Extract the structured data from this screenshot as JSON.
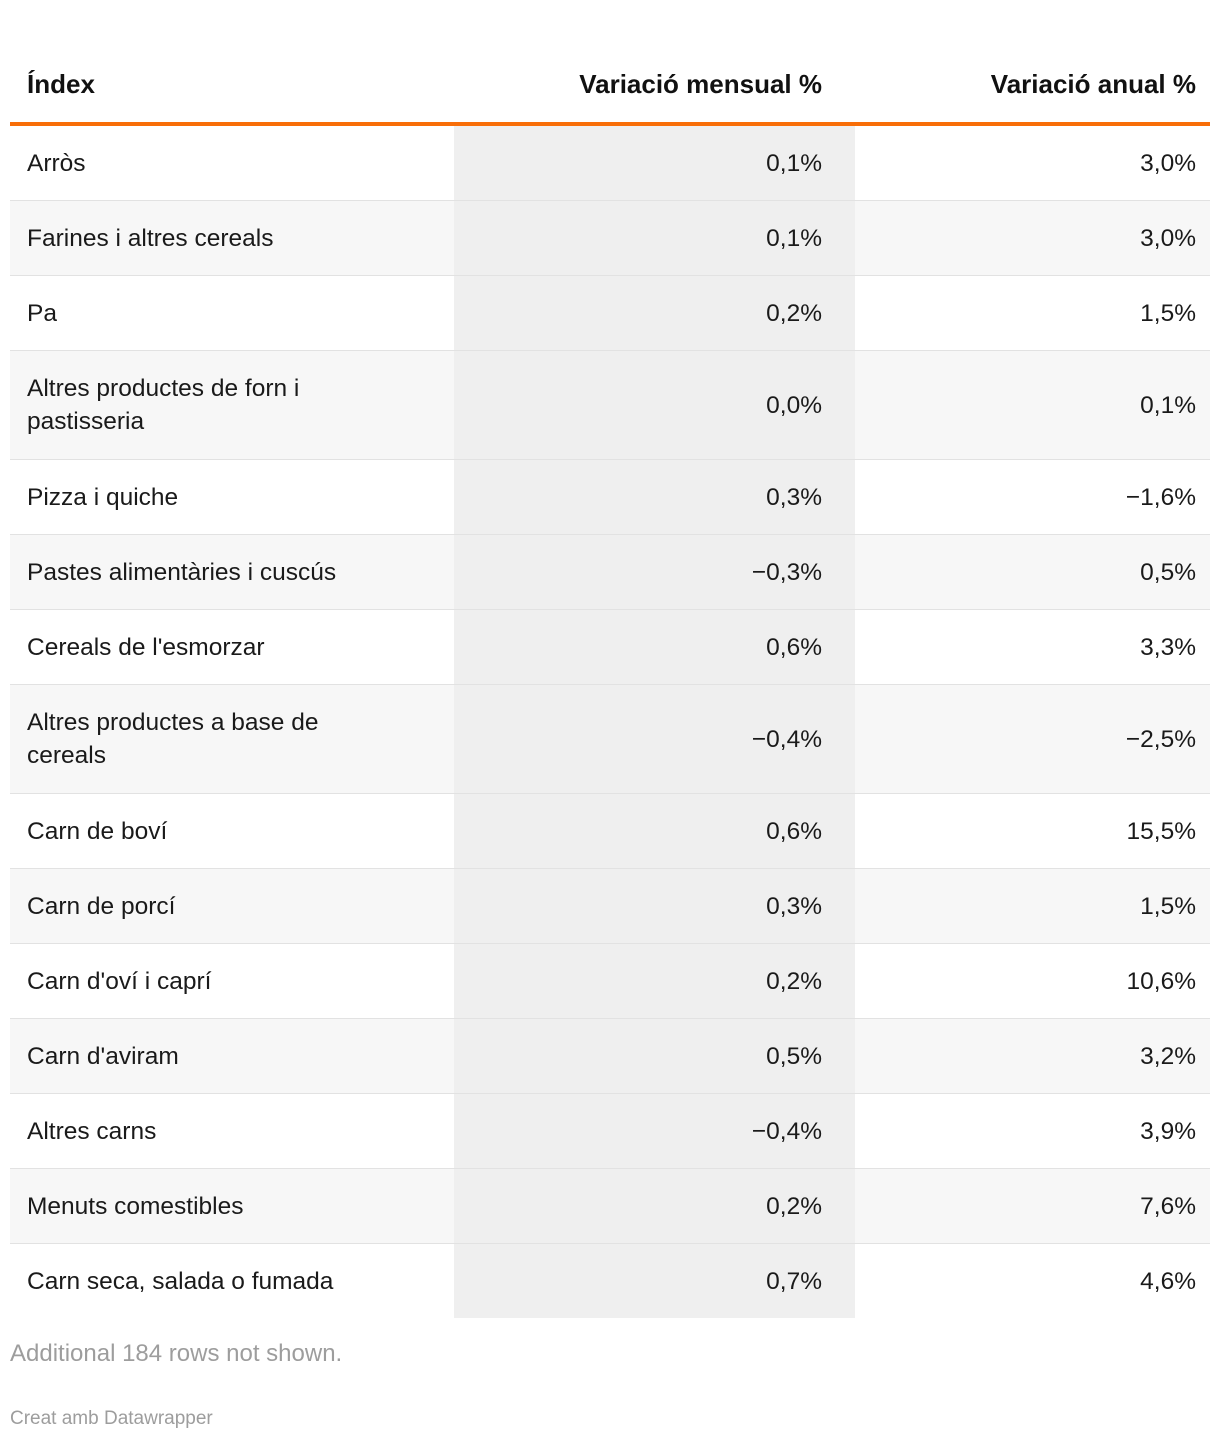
{
  "chart_data": {
    "type": "table",
    "columns": [
      "Índex",
      "Variació mensual %",
      "Variació anual %"
    ],
    "rows": [
      [
        "Arròs",
        "0,1%",
        "3,0%"
      ],
      [
        "Farines i altres cereals",
        "0,1%",
        "3,0%"
      ],
      [
        "Pa",
        "0,2%",
        "1,5%"
      ],
      [
        "Altres productes de forn i pastisseria",
        "0,0%",
        "0,1%"
      ],
      [
        "Pizza i quiche",
        "0,3%",
        "−1,6%"
      ],
      [
        "Pastes alimentàries i cuscús",
        "−0,3%",
        "0,5%"
      ],
      [
        "Cereals de l'esmorzar",
        "0,6%",
        "3,3%"
      ],
      [
        "Altres productes a base de cereals",
        "−0,4%",
        "−2,5%"
      ],
      [
        "Carn de boví",
        "0,6%",
        "15,5%"
      ],
      [
        "Carn de porcí",
        "0,3%",
        "1,5%"
      ],
      [
        "Carn d'oví i caprí",
        "0,2%",
        "10,6%"
      ],
      [
        "Carn d'aviram",
        "0,5%",
        "3,2%"
      ],
      [
        "Altres carns",
        "−0,4%",
        "3,9%"
      ],
      [
        "Menuts comestibles",
        "0,2%",
        "7,6%"
      ],
      [
        "Carn seca, salada o fumada",
        "0,7%",
        "4,6%"
      ]
    ],
    "highlight_column": "Variació mensual %",
    "layout_hints": {
      "header_rule_color": "#f86e08",
      "highlight_column_bg": "#efefef",
      "zebra_row_bg": "#f7f7f7",
      "grid": "horizontal-only",
      "value_alignment": "right"
    }
  },
  "footer": {
    "note": "Additional 184 rows not shown.",
    "credit": "Creat amb Datawrapper"
  },
  "colors": {
    "accent": "#f86e08",
    "text": "#1a1a1a",
    "muted": "#9d9d9d"
  }
}
